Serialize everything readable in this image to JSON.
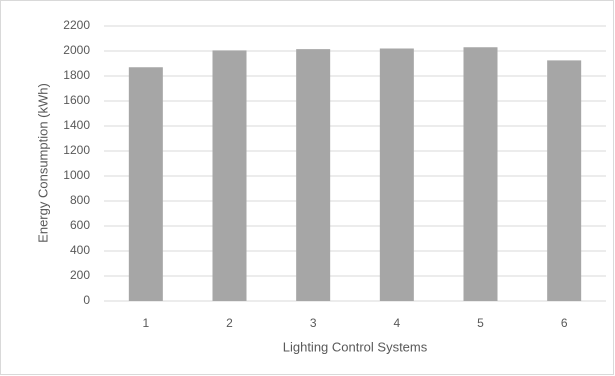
{
  "chart_data": {
    "type": "bar",
    "x_label": "Lighting Control Systems",
    "y_label": "Energy Consumption (kWh)",
    "categories": [
      "1",
      "2",
      "3",
      "4",
      "5",
      "6"
    ],
    "values": [
      1870,
      2005,
      2015,
      2020,
      2030,
      1925
    ],
    "color": "#a6a6a6",
    "ylim": [
      0,
      2200
    ],
    "yticks": [
      0,
      200,
      400,
      600,
      800,
      1000,
      1200,
      1400,
      1600,
      1800,
      2000,
      2200
    ],
    "grid": true
  }
}
